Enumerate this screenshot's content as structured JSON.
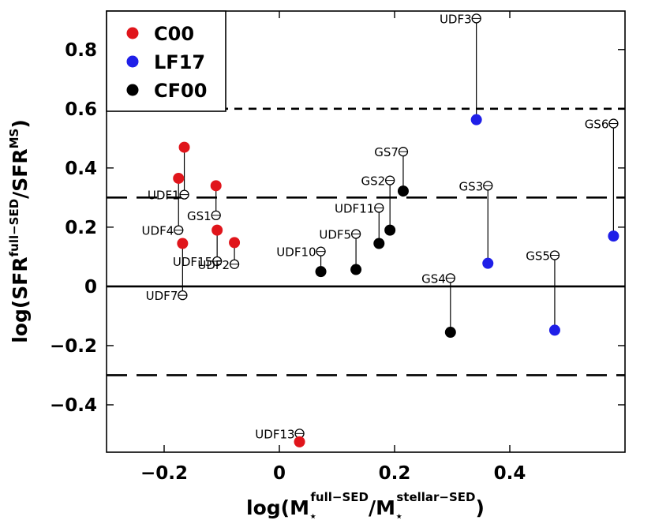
{
  "chart_data": {
    "type": "scatter",
    "xlim": [
      -0.3,
      0.6
    ],
    "ylim": [
      -0.56,
      0.93
    ],
    "x_ticks": [
      -0.2,
      0,
      0.2,
      0.4
    ],
    "x_tick_labels": [
      "−0.2",
      "0",
      "0.2",
      "0.4"
    ],
    "y_ticks": [
      -0.4,
      -0.2,
      0,
      0.2,
      0.4,
      0.6,
      0.8
    ],
    "y_tick_labels": [
      "−0.4",
      "−0.2",
      "0",
      "0.2",
      "0.4",
      "0.6",
      "0.8"
    ],
    "xlabel": {
      "base": "log(M",
      "sub1": "⋆",
      "sup1": "full−SED",
      "mid": "/M",
      "sub2": "⋆",
      "sup2": "stellar−SED",
      "end": ")"
    },
    "ylabel": {
      "base": "log(SFR",
      "sup1": "full−SED",
      "mid": "/SFR",
      "sup2": "MS",
      "end": ")"
    },
    "legend": {
      "placement": "top-left",
      "entries": [
        {
          "name": "C00",
          "color": "#e0151b"
        },
        {
          "name": "LF17",
          "color": "#1f1fe8"
        },
        {
          "name": "CF00",
          "color": "#000000"
        }
      ]
    },
    "reference_lines": [
      {
        "y": 0,
        "style": "solid"
      },
      {
        "y": 0.3,
        "style": "long-dash"
      },
      {
        "y": -0.3,
        "style": "long-dash"
      },
      {
        "y": 0.6,
        "style": "short-dash"
      }
    ],
    "series": [
      {
        "name": "C00",
        "color": "#e0151b",
        "points": [
          {
            "x": -0.175,
            "y": 0.365
          },
          {
            "x": -0.165,
            "y": 0.47
          },
          {
            "x": -0.168,
            "y": 0.145
          },
          {
            "x": -0.11,
            "y": 0.34
          },
          {
            "x": -0.108,
            "y": 0.19
          },
          {
            "x": -0.078,
            "y": 0.148
          },
          {
            "x": 0.035,
            "y": -0.525
          }
        ]
      },
      {
        "name": "LF17",
        "color": "#1f1fe8",
        "points": [
          {
            "x": 0.342,
            "y": 0.563
          },
          {
            "x": 0.362,
            "y": 0.078
          },
          {
            "x": 0.478,
            "y": -0.148
          },
          {
            "x": 0.58,
            "y": 0.17
          }
        ]
      },
      {
        "name": "CF00",
        "color": "#000000",
        "points": [
          {
            "x": 0.072,
            "y": 0.05
          },
          {
            "x": 0.133,
            "y": 0.057
          },
          {
            "x": 0.173,
            "y": 0.145
          },
          {
            "x": 0.192,
            "y": 0.19
          },
          {
            "x": 0.215,
            "y": 0.322
          },
          {
            "x": 0.297,
            "y": -0.155
          }
        ]
      }
    ],
    "annotations": [
      {
        "label": "UDF3",
        "x": 0.342,
        "y": 0.905,
        "to_y": 0.563
      },
      {
        "label": "GS6",
        "x": 0.58,
        "y": 0.55,
        "to_y": 0.17
      },
      {
        "label": "GS7",
        "x": 0.215,
        "y": 0.455,
        "to_y": 0.322
      },
      {
        "label": "GS2",
        "x": 0.192,
        "y": 0.358,
        "to_y": 0.19
      },
      {
        "label": "GS3",
        "x": 0.362,
        "y": 0.34,
        "to_y": 0.078
      },
      {
        "label": "UDF11",
        "x": 0.173,
        "y": 0.265,
        "to_y": 0.145
      },
      {
        "label": "UDF5",
        "x": 0.133,
        "y": 0.177,
        "to_y": 0.057
      },
      {
        "label": "UDF10",
        "x": 0.072,
        "y": 0.118,
        "to_y": 0.05
      },
      {
        "label": "GS5",
        "x": 0.478,
        "y": 0.105,
        "to_y": -0.148
      },
      {
        "label": "GS4",
        "x": 0.297,
        "y": 0.028,
        "to_y": -0.155
      },
      {
        "label": "UDF1",
        "x": -0.165,
        "y": 0.31,
        "to_y": 0.47
      },
      {
        "label": "GS1",
        "x": -0.11,
        "y": 0.24,
        "to_y": 0.34
      },
      {
        "label": "UDF4",
        "x": -0.175,
        "y": 0.19,
        "to_y": 0.365
      },
      {
        "label": "UDF15",
        "x": -0.108,
        "y": 0.085,
        "to_y": 0.19
      },
      {
        "label": "UDF2",
        "x": -0.078,
        "y": 0.075,
        "to_y": 0.148
      },
      {
        "label": "UDF7",
        "x": -0.168,
        "y": -0.03,
        "to_y": 0.145
      },
      {
        "label": "UDF13",
        "x": 0.035,
        "y": -0.497,
        "to_y": -0.525
      }
    ]
  }
}
